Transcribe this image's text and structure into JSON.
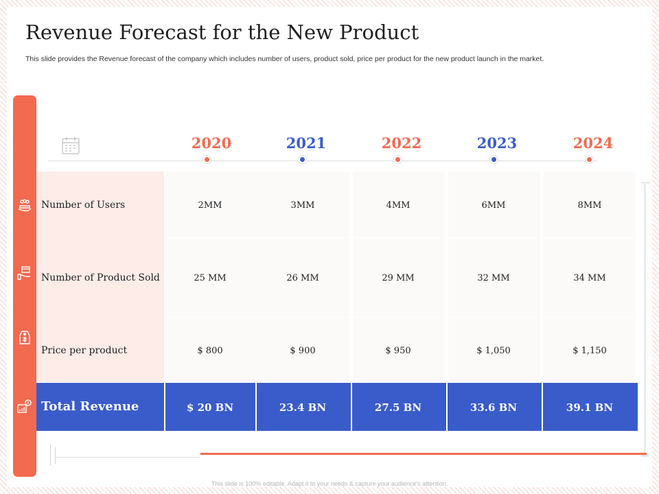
{
  "slide": {
    "title": "Revenue Forecast for the New Product",
    "subtitle": "This slide provides the Revenue forecast of the company which includes number of users, product sold, price per product for the new product launch in the market.",
    "footer": "This slide is 100% editable. Adapt it to your needs & capture your audience's attention."
  },
  "colors": {
    "accent_orange": "#f26a50",
    "accent_blue": "#3a5cca",
    "label_bg": "#fdece8"
  },
  "years": [
    "2020",
    "2021",
    "2022",
    "2023",
    "2024"
  ],
  "rows": [
    {
      "label": "Number of Users",
      "icon": "users-hand-icon",
      "values": [
        "2MM",
        "3MM",
        "4MM",
        "6MM",
        "8MM"
      ]
    },
    {
      "label": "Number of Product Sold",
      "icon": "product-box-hand-icon",
      "values": [
        "25 MM",
        "26 MM",
        "29 MM",
        "32 MM",
        "34 MM"
      ]
    },
    {
      "label": "Price per product",
      "icon": "price-tag-icon",
      "values": [
        "$ 800",
        "$ 900",
        "$ 950",
        "$ 1,050",
        "$ 1,150"
      ]
    }
  ],
  "total": {
    "label": "Total Revenue",
    "icon": "revenue-chart-icon",
    "values": [
      "$ 20 BN",
      "23.4 BN",
      "27.5 BN",
      "33.6 BN",
      "39.1 BN"
    ]
  },
  "timeline_icon": "calendar-icon"
}
